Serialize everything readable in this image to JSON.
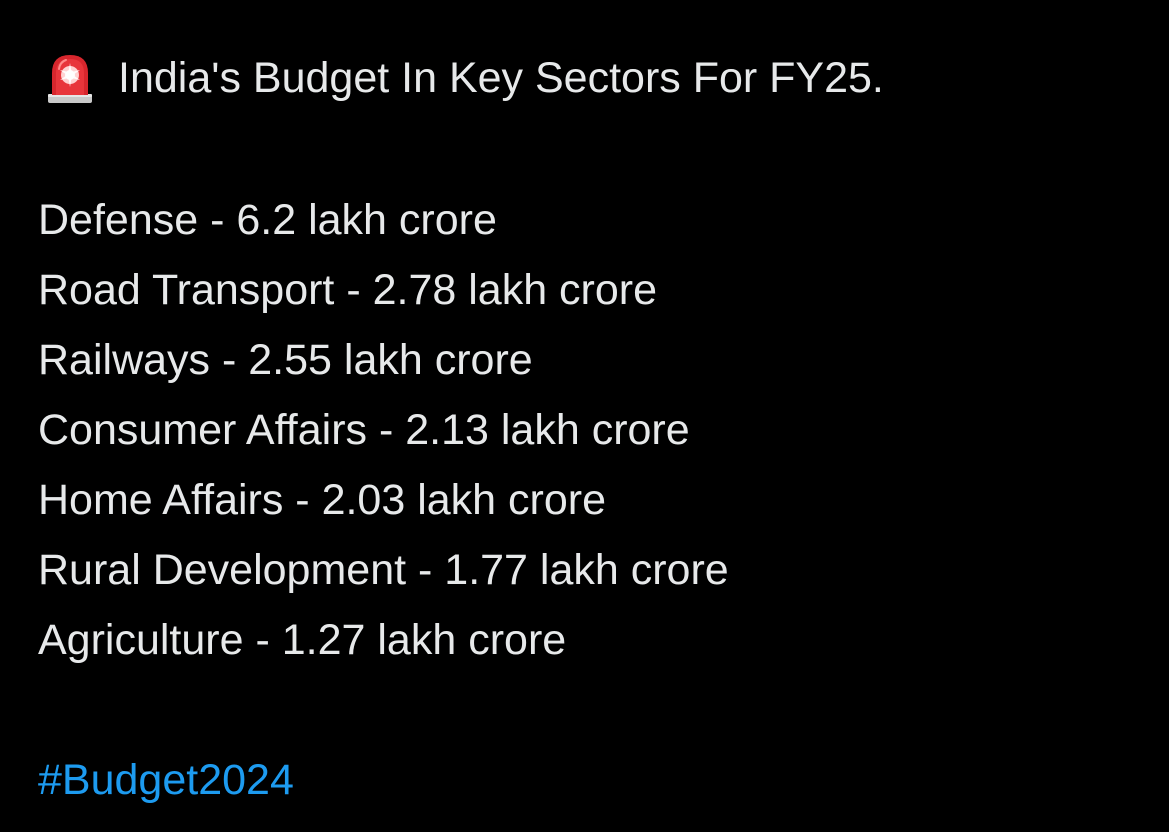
{
  "post": {
    "emoji": "siren-icon",
    "title": "India's Budget In Key Sectors For FY25.",
    "lines": [
      "Defense - 6.2 lakh crore",
      "Road Transport - 2.78 lakh crore",
      "Railways - 2.55 lakh crore",
      "Consumer Affairs - 2.13 lakh crore",
      "Home Affairs - 2.03 lakh crore",
      "Rural Development - 1.77 lakh crore",
      "Agriculture - 1.27 lakh crore"
    ],
    "hashtag": "#Budget2024"
  },
  "colors": {
    "background": "#000000",
    "text": "#e7e9ea",
    "link": "#1d9bf0",
    "siren": "#e0242b"
  }
}
